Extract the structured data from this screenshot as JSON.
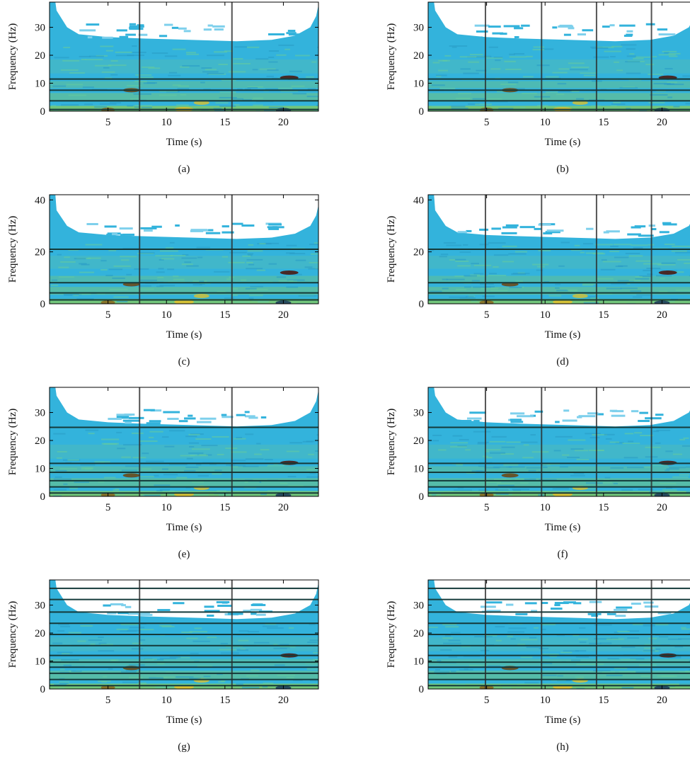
{
  "figure": {
    "panels": [
      {
        "caption": "(a)",
        "xlabel": "Time (s)",
        "ylabel": "Frequency (Hz)"
      },
      {
        "caption": "(b)",
        "xlabel": "Time (s)",
        "ylabel": "Frequency (Hz)"
      },
      {
        "caption": "(c)",
        "xlabel": "Time (s)",
        "ylabel": "Frequency (Hz)"
      },
      {
        "caption": "(d)",
        "xlabel": "Time (s)",
        "ylabel": "Frequency (Hz)"
      },
      {
        "caption": "(e)",
        "xlabel": "Time (s)",
        "ylabel": "Frequency (Hz)"
      },
      {
        "caption": "(f)",
        "xlabel": "Time (s)",
        "ylabel": "Frequency (Hz)"
      },
      {
        "caption": "(g)",
        "xlabel": "Time (s)",
        "ylabel": "Frequency (Hz)"
      },
      {
        "caption": "(h)",
        "xlabel": "Time (s)",
        "ylabel": "Frequency (Hz)"
      }
    ]
  },
  "colors": {
    "background_cyan": "#33b3dc",
    "mid_green": "#7ec86a",
    "yellow": "#e0c030",
    "dark_band": "#143a3a",
    "grid_line": "#2a2a2a",
    "no_energy": "#ffffff"
  },
  "chart_data": [
    {
      "type": "heatmap",
      "panel": "a",
      "xlabel": "Time (s)",
      "ylabel": "Frequency (Hz)",
      "xlim": [
        0,
        23
      ],
      "ylim": [
        0,
        39
      ],
      "xticks": [
        5,
        10,
        15,
        20
      ],
      "yticks": [
        0,
        10,
        20,
        30
      ],
      "time_boundaries": [
        7.7,
        15.6
      ],
      "frequency_boundaries": [
        0.6,
        3.7,
        7.5,
        11.5
      ]
    },
    {
      "type": "heatmap",
      "panel": "b",
      "xlabel": "Time (s)",
      "ylabel": "Frequency (Hz)",
      "xlim": [
        0,
        23
      ],
      "ylim": [
        0,
        39
      ],
      "xticks": [
        5,
        10,
        15,
        20
      ],
      "yticks": [
        0,
        10,
        20,
        30
      ],
      "time_boundaries": [
        4.9,
        9.7,
        14.4,
        19.1
      ],
      "frequency_boundaries": [
        0.6,
        3.7,
        7.5,
        11.5
      ]
    },
    {
      "type": "heatmap",
      "panel": "c",
      "xlabel": "Time (s)",
      "ylabel": "Frequency (Hz)",
      "xlim": [
        0,
        23
      ],
      "ylim": [
        0,
        42
      ],
      "xticks": [
        5,
        10,
        15,
        20
      ],
      "yticks": [
        0,
        20,
        40
      ],
      "time_boundaries": [
        7.7,
        15.6
      ],
      "frequency_boundaries": [
        1.5,
        4.2,
        8.1,
        21
      ]
    },
    {
      "type": "heatmap",
      "panel": "d",
      "xlabel": "Time (s)",
      "ylabel": "Frequency (Hz)",
      "xlim": [
        0,
        23
      ],
      "ylim": [
        0,
        42
      ],
      "xticks": [
        5,
        10,
        15,
        20
      ],
      "yticks": [
        0,
        20,
        40
      ],
      "time_boundaries": [
        4.9,
        9.7,
        14.4,
        19.1
      ],
      "frequency_boundaries": [
        1.5,
        4.2,
        8.1,
        21
      ]
    },
    {
      "type": "heatmap",
      "panel": "e",
      "xlabel": "Time (s)",
      "ylabel": "Frequency (Hz)",
      "xlim": [
        0,
        23
      ],
      "ylim": [
        0,
        39
      ],
      "xticks": [
        5,
        10,
        15,
        20
      ],
      "yticks": [
        0,
        10,
        20,
        30
      ],
      "time_boundaries": [
        7.7,
        15.6
      ],
      "frequency_boundaries": [
        1.2,
        3.4,
        5.6,
        8.6,
        11.8,
        24.7
      ]
    },
    {
      "type": "heatmap",
      "panel": "f",
      "xlabel": "Time (s)",
      "ylabel": "Frequency (Hz)",
      "xlim": [
        0,
        23
      ],
      "ylim": [
        0,
        39
      ],
      "xticks": [
        5,
        10,
        15,
        20
      ],
      "yticks": [
        0,
        10,
        20,
        30
      ],
      "time_boundaries": [
        4.9,
        9.7,
        14.4,
        19.1
      ],
      "frequency_boundaries": [
        1.2,
        3.4,
        5.6,
        8.6,
        11.8,
        24.7
      ]
    },
    {
      "type": "heatmap",
      "panel": "g",
      "xlabel": "Time (s)",
      "ylabel": "Frequency (Hz)",
      "xlim": [
        0,
        23
      ],
      "ylim": [
        0,
        39
      ],
      "xticks": [
        5,
        10,
        15,
        20
      ],
      "yticks": [
        0,
        10,
        20,
        30
      ],
      "time_boundaries": [
        7.7,
        15.6
      ],
      "frequency_boundaries": [
        1.2,
        3.4,
        5.6,
        7.8,
        9.6,
        12,
        15.5,
        19.5,
        23.5,
        27.5,
        32,
        36
      ]
    },
    {
      "type": "heatmap",
      "panel": "h",
      "xlabel": "Time (s)",
      "ylabel": "Frequency (Hz)",
      "xlim": [
        0,
        23
      ],
      "ylim": [
        0,
        39
      ],
      "xticks": [
        5,
        10,
        15,
        20
      ],
      "yticks": [
        0,
        10,
        20,
        30
      ],
      "time_boundaries": [
        4.9,
        9.7,
        14.4,
        19.1
      ],
      "frequency_boundaries": [
        1.2,
        3.4,
        5.6,
        7.8,
        9.6,
        12,
        15.5,
        19.5,
        23.5,
        27.5,
        32,
        36
      ]
    }
  ]
}
